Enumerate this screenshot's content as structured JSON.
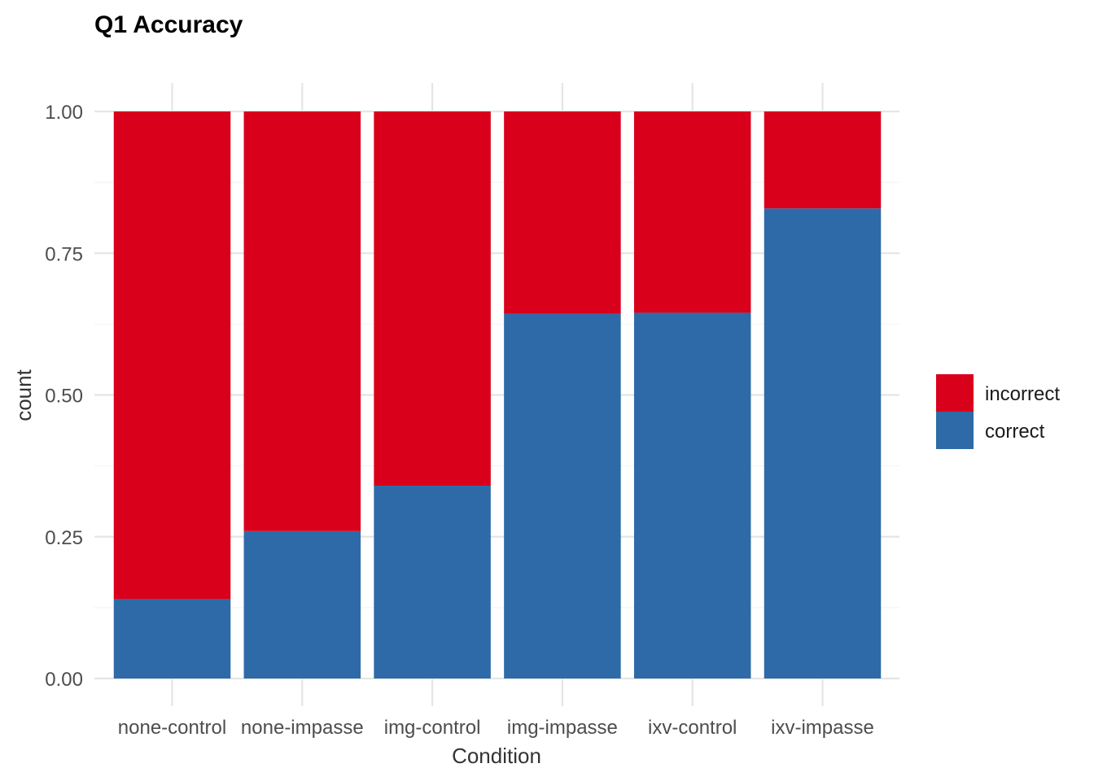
{
  "chart_data": {
    "type": "bar",
    "stacked": true,
    "title": "Q1 Accuracy",
    "xlabel": "Condition",
    "ylabel": "count",
    "categories": [
      "none-control",
      "none-impasse",
      "img-control",
      "img-impasse",
      "ixv-control",
      "ixv-impasse"
    ],
    "series": [
      {
        "name": "correct",
        "color": "#2e6aa8",
        "values": [
          0.14,
          0.26,
          0.34,
          0.643,
          0.645,
          0.829
        ]
      },
      {
        "name": "incorrect",
        "color": "#d9001b",
        "values": [
          0.86,
          0.74,
          0.66,
          0.357,
          0.355,
          0.171
        ]
      }
    ],
    "ylim": [
      0,
      1
    ],
    "yticks": [
      "0.00",
      "0.25",
      "0.50",
      "0.75",
      "1.00"
    ],
    "grid": true,
    "legend": {
      "position": "right",
      "order": [
        "incorrect",
        "correct"
      ]
    }
  }
}
